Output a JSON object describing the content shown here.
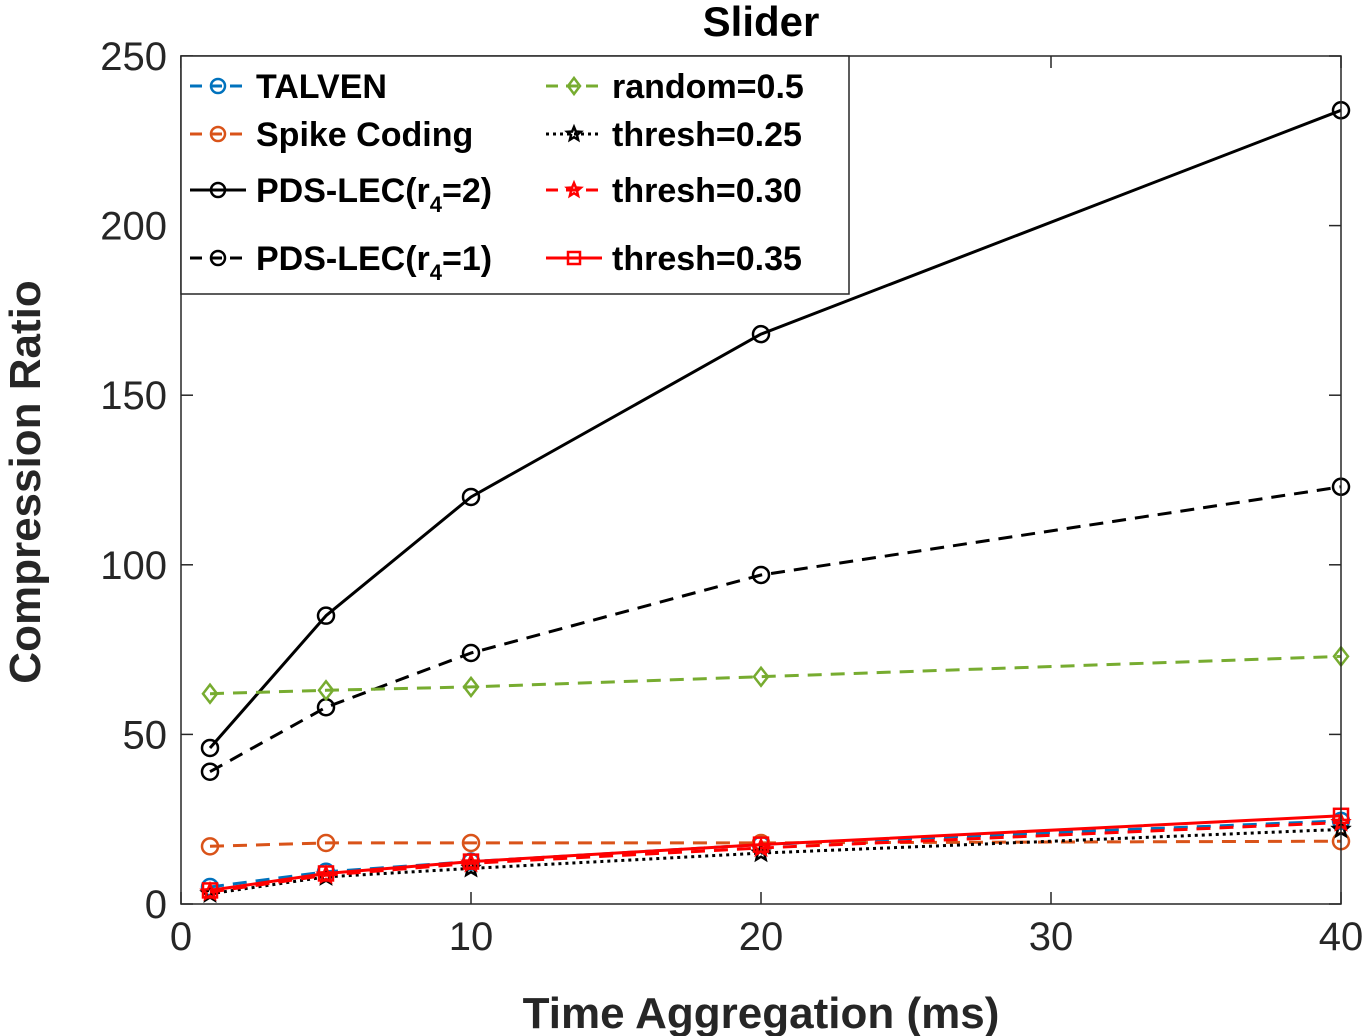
{
  "chart_data": {
    "type": "line",
    "title": "Slider",
    "xlabel": "Time Aggregation (ms)",
    "ylabel": "Compression Ratio",
    "xlim": [
      0,
      40
    ],
    "ylim": [
      0,
      250
    ],
    "xticks": [
      0,
      10,
      20,
      30,
      40
    ],
    "yticks": [
      0,
      50,
      100,
      150,
      200,
      250
    ],
    "x": [
      1,
      5,
      10,
      20,
      40
    ],
    "legend_position": "top-left",
    "series": [
      {
        "name": "TALVEN",
        "label_main": "TALVEN",
        "label_sub": "",
        "label_tail": "",
        "color": "#0072BD",
        "dash": "dashed",
        "marker": "circle",
        "values": [
          5,
          9.5,
          12.5,
          17.5,
          24.5
        ]
      },
      {
        "name": "Spike Coding",
        "label_main": "Spike Coding",
        "label_sub": "",
        "label_tail": "",
        "color": "#D95319",
        "dash": "dashed",
        "marker": "circle",
        "values": [
          17,
          18,
          18,
          18,
          18.5
        ]
      },
      {
        "name": "PDS-LEC(r4=2)",
        "label_main": "PDS-LEC(r",
        "label_sub": "4",
        "label_tail": "=2)",
        "color": "#000000",
        "dash": "solid",
        "marker": "circle",
        "values": [
          46,
          85,
          120,
          168,
          234
        ]
      },
      {
        "name": "PDS-LEC(r4=1)",
        "label_main": "PDS-LEC(r",
        "label_sub": "4",
        "label_tail": "=1)",
        "color": "#000000",
        "dash": "dashed",
        "marker": "circle",
        "values": [
          39,
          58,
          74,
          97,
          123
        ]
      },
      {
        "name": "random=0.5",
        "label_main": "random=0.5",
        "label_sub": "",
        "label_tail": "",
        "color": "#77AC30",
        "dash": "dashed",
        "marker": "diamond",
        "values": [
          62,
          63,
          64,
          67,
          73
        ]
      },
      {
        "name": "thresh=0.25",
        "label_main": "thresh=0.25",
        "label_sub": "",
        "label_tail": "",
        "color": "#000000",
        "dash": "dotted",
        "marker": "star",
        "values": [
          3,
          8,
          10.5,
          15,
          22
        ]
      },
      {
        "name": "thresh=0.30",
        "label_main": "thresh=0.30",
        "label_sub": "",
        "label_tail": "",
        "color": "#FF0000",
        "dash": "dashed",
        "marker": "star",
        "values": [
          3.5,
          8.5,
          12,
          16.5,
          24
        ]
      },
      {
        "name": "thresh=0.35",
        "label_main": "thresh=0.35",
        "label_sub": "",
        "label_tail": "",
        "color": "#FF0000",
        "dash": "solid",
        "marker": "square",
        "values": [
          4,
          9,
          12.5,
          17.5,
          26
        ]
      }
    ]
  }
}
